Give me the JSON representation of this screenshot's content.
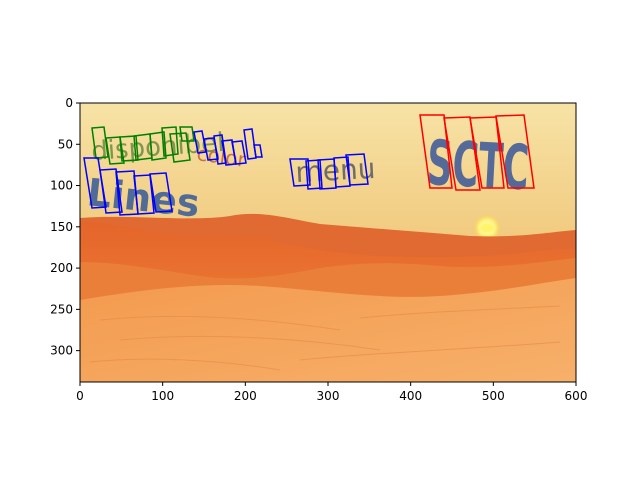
{
  "axes": {
    "x_ticks": [
      "0",
      "100",
      "200",
      "300",
      "400",
      "500",
      "600"
    ],
    "y_ticks": [
      "0",
      "50",
      "100",
      "150",
      "200",
      "250",
      "300"
    ],
    "xlim": [
      0,
      600
    ],
    "ylim": [
      338,
      0
    ]
  },
  "scene": {
    "words": [
      {
        "text": "disponibel",
        "color": "#6b8a3e"
      },
      {
        "text": "Lines",
        "color": "#355a9a"
      },
      {
        "text": "menu",
        "color": "#5a5a62"
      },
      {
        "text": "SCTC",
        "color": "#2e4f9a"
      },
      {
        "text": "color",
        "color": "#b8502a"
      }
    ],
    "colors": {
      "sky_top": "#f7e0a0",
      "sky_bottom": "#e9b35a",
      "dune_dark": "#d9521d",
      "dune_mid": "#ec7a2e",
      "dune_light": "#f5a65a",
      "sun": "#fff27a"
    }
  },
  "annotations": {
    "box_colors": {
      "green": "#008000",
      "blue": "#0000ff",
      "red": "#ff0000"
    }
  }
}
